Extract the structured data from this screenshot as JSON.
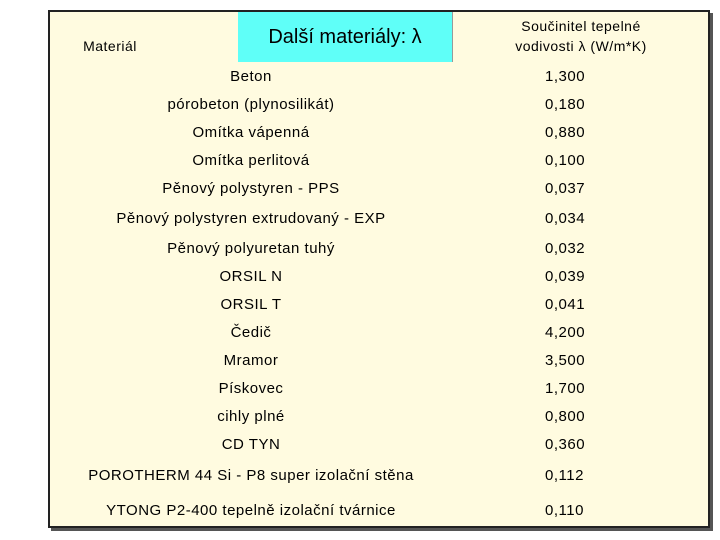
{
  "header": {
    "material": "Materiál",
    "other_materials": "Další materiály: λ",
    "conductivity": [
      "Součinitel tepelné",
      "vodivosti λ (W/m*K)"
    ]
  },
  "table": {
    "rows": [
      [
        "Beton",
        "1,300"
      ],
      [
        "pórobeton (plynosilikát)",
        "0,180"
      ],
      [
        "Omítka vápenná",
        "0,880"
      ],
      [
        "Omítka perlitová",
        "0,100"
      ],
      [
        "Pěnový polystyren - PPS",
        "0,037"
      ],
      [
        "Pěnový polystyren extrudovaný - EXP",
        "0,034"
      ],
      [
        "Pěnový polyuretan tuhý",
        "0,032"
      ],
      [
        "ORSIL N",
        "0,039"
      ],
      [
        "ORSIL T",
        "0,041"
      ],
      [
        "Čedič",
        "4,200"
      ],
      [
        "Mramor",
        "3,500"
      ],
      [
        "Pískovec",
        "1,700"
      ],
      [
        "cihly plné",
        "0,800"
      ],
      [
        "CD TYN",
        "0,360"
      ],
      [
        "POROTHERM 44 Si - P8 super izolační stěna",
        "0,112"
      ],
      [
        "YTONG P2-400 tepelně izolační tvárnice",
        "0,110"
      ]
    ]
  }
}
